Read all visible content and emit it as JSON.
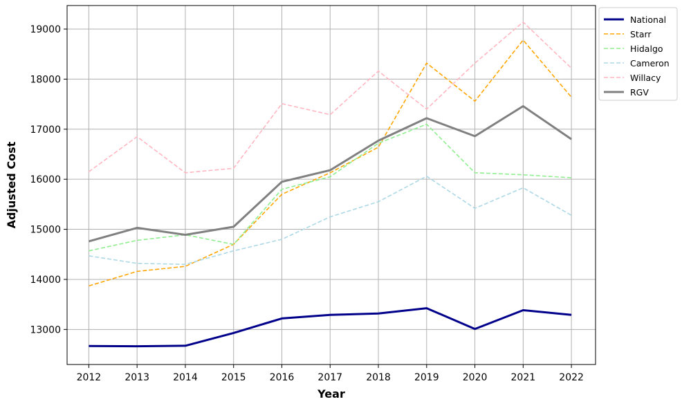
{
  "chart_data": {
    "type": "line",
    "title": "",
    "xlabel": "Year",
    "ylabel": "Adjusted Cost",
    "x": [
      2012,
      2013,
      2014,
      2015,
      2016,
      2017,
      2018,
      2019,
      2020,
      2021,
      2022
    ],
    "xticks": [
      "2012",
      "2013",
      "2014",
      "2015",
      "2016",
      "2017",
      "2018",
      "2019",
      "2020",
      "2021",
      "2022"
    ],
    "yticks": [
      "13000",
      "14000",
      "15000",
      "16000",
      "17000",
      "18000",
      "19000"
    ],
    "ylim": [
      12300,
      19470
    ],
    "xlim": [
      2011.55,
      2022.5
    ],
    "grid": true,
    "legend_position": "right",
    "series": [
      {
        "name": "National",
        "color": "#00008b",
        "style": "solid",
        "values": [
          12670,
          12665,
          12675,
          12930,
          13220,
          13290,
          13320,
          13425,
          13010,
          13385,
          13290
        ]
      },
      {
        "name": "Starr",
        "color": "#ffa500",
        "style": "dashed",
        "values": [
          13870,
          14160,
          14260,
          14700,
          15700,
          16130,
          16640,
          18320,
          17560,
          18780,
          17640
        ]
      },
      {
        "name": "Hidalgo",
        "color": "#90ee90",
        "style": "dashed",
        "values": [
          14570,
          14780,
          14890,
          14700,
          15800,
          16050,
          16720,
          17100,
          16130,
          16090,
          16030
        ]
      },
      {
        "name": "Cameron",
        "color": "#add8e6",
        "style": "dashed",
        "values": [
          14470,
          14320,
          14300,
          14570,
          14800,
          15250,
          15550,
          16060,
          15420,
          15830,
          15280
        ]
      },
      {
        "name": "Willacy",
        "color": "#ffb6c1",
        "style": "dashed",
        "values": [
          16150,
          16850,
          16130,
          16220,
          17510,
          17290,
          18160,
          17400,
          18320,
          19140,
          18220
        ]
      },
      {
        "name": "RGV",
        "color": "#808080",
        "style": "solid",
        "values": [
          14760,
          15030,
          14890,
          15050,
          15950,
          16180,
          16770,
          17220,
          16860,
          17460,
          16800
        ]
      }
    ]
  }
}
